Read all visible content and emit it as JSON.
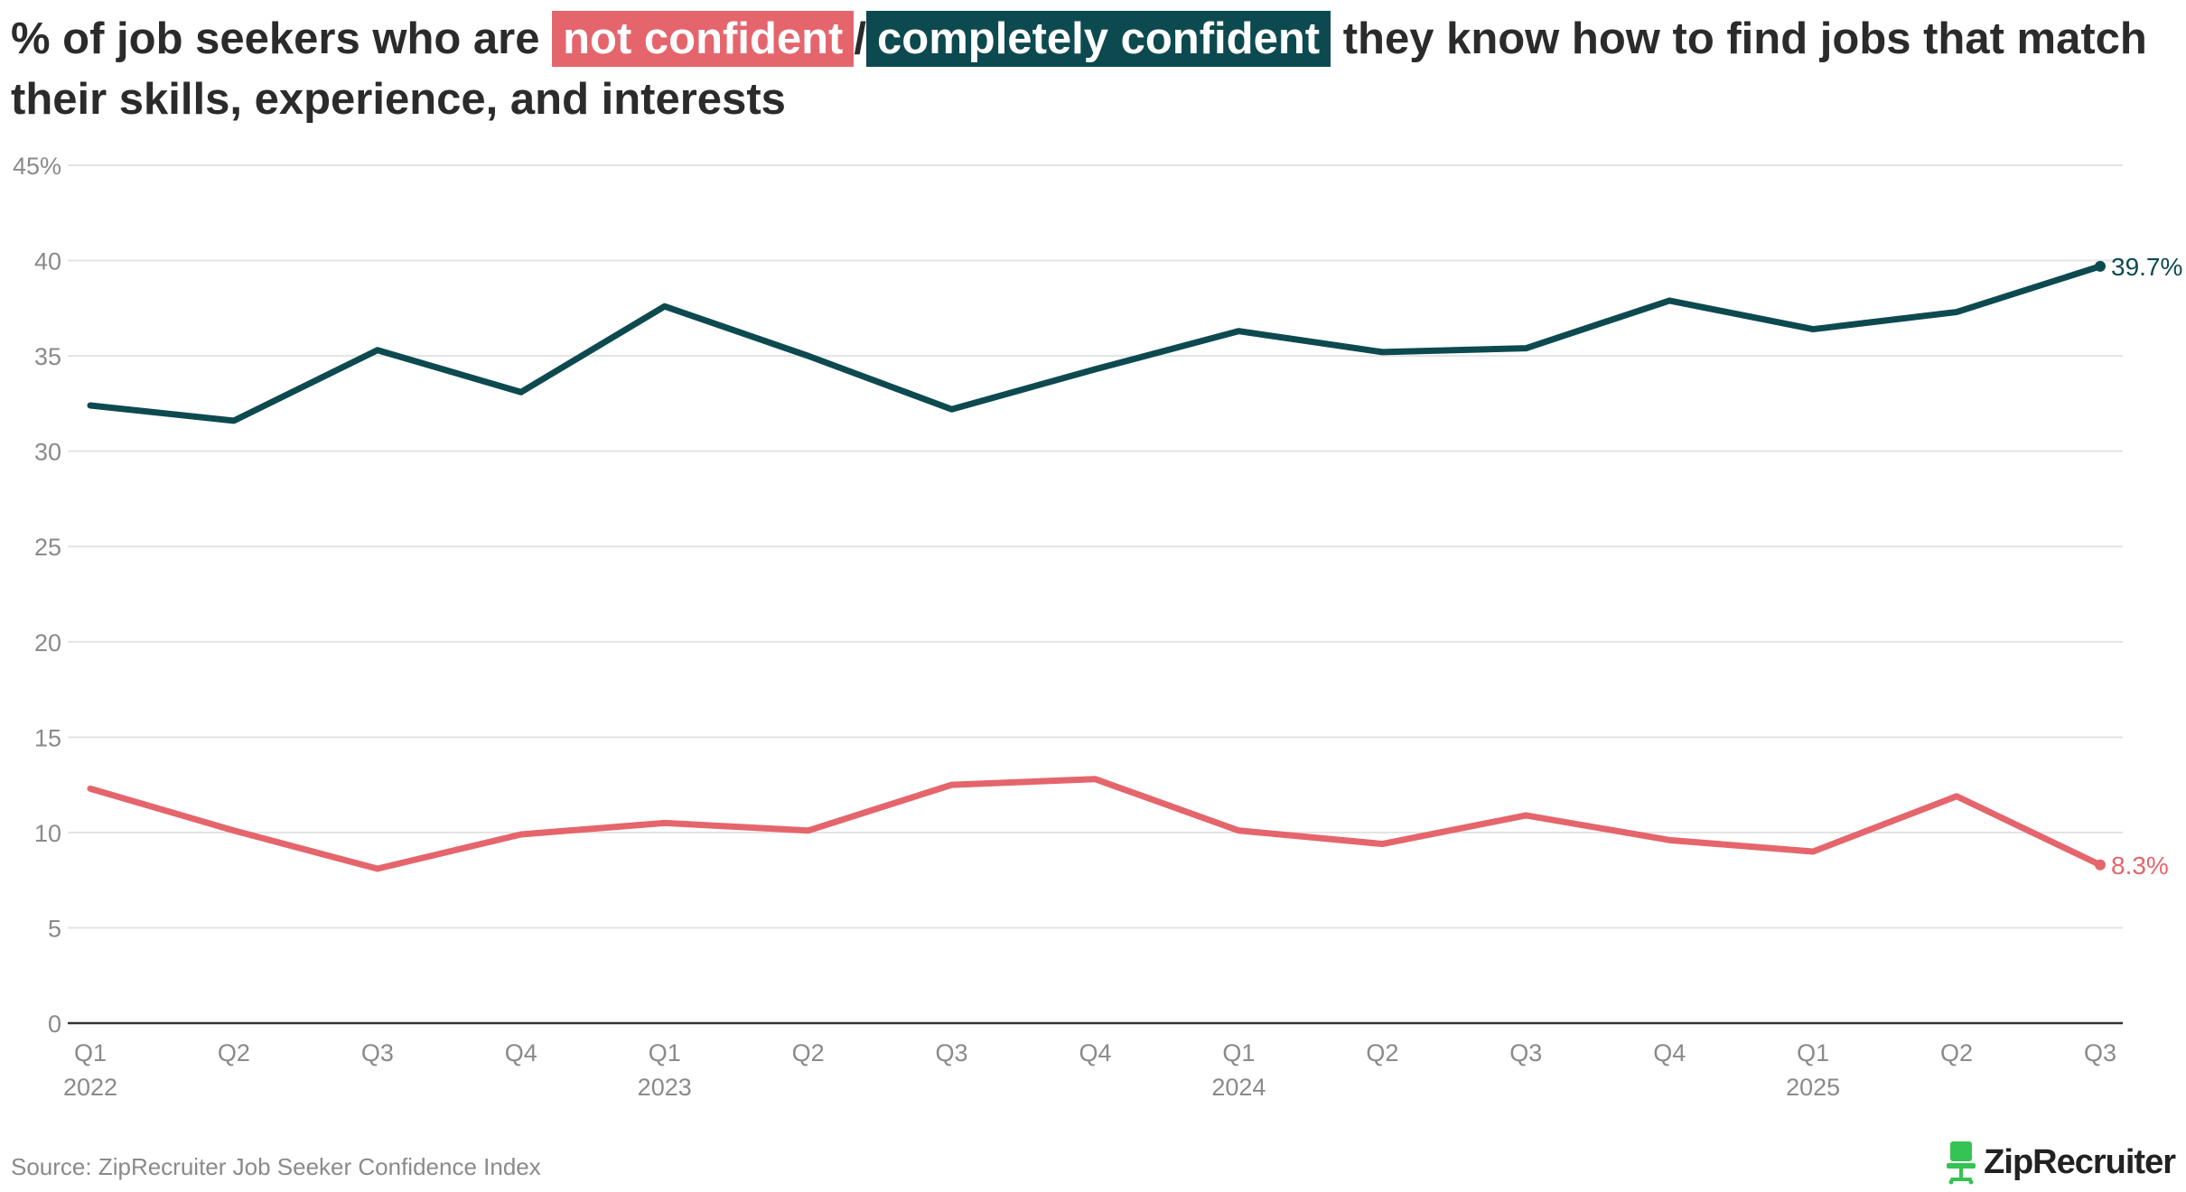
{
  "title": {
    "prefix": "% of job seekers who are ",
    "highlight_1": "not confident",
    "separator": "/",
    "highlight_2": "completely confident",
    "suffix": " they know how to find jobs that match their skills, experience, and interests"
  },
  "source": "Source: ZipRecruiter Job Seeker Confidence Index",
  "logo": {
    "text": "ZipRecruiter",
    "icon": "chair-icon"
  },
  "colors": {
    "not_confident": "#e5656c",
    "completely_confident": "#0d4a50",
    "grid": "#e3e3e3",
    "axis": "#333333",
    "logo_green": "#35c353"
  },
  "chart_data": {
    "type": "line",
    "x": [
      "Q1 2022",
      "Q2 2022",
      "Q3 2022",
      "Q4 2022",
      "Q1 2023",
      "Q2 2023",
      "Q3 2023",
      "Q4 2023",
      "Q1 2024",
      "Q2 2024",
      "Q3 2024",
      "Q4 2024",
      "Q1 2025",
      "Q2 2025",
      "Q3 2025"
    ],
    "x_tick_quarters": [
      "Q1",
      "Q2",
      "Q3",
      "Q4",
      "Q1",
      "Q2",
      "Q3",
      "Q4",
      "Q1",
      "Q2",
      "Q3",
      "Q4",
      "Q1",
      "Q2",
      "Q3"
    ],
    "x_tick_years": [
      "2022",
      "",
      "",
      "",
      "2023",
      "",
      "",
      "",
      "2024",
      "",
      "",
      "",
      "2025",
      "",
      ""
    ],
    "y_ticks": [
      "0",
      "5",
      "10",
      "15",
      "20",
      "25",
      "30",
      "35",
      "40",
      "45%"
    ],
    "ylim": [
      0,
      45
    ],
    "grid": true,
    "series": [
      {
        "key": "completely_confident",
        "color": "#0d4a50",
        "values": [
          32.4,
          31.6,
          35.3,
          33.1,
          37.6,
          35.0,
          32.2,
          34.3,
          36.3,
          35.2,
          35.4,
          37.9,
          36.4,
          37.3,
          39.7
        ],
        "end_label": "39.7%"
      },
      {
        "key": "not_confident",
        "color": "#e5656c",
        "values": [
          12.3,
          10.1,
          8.1,
          9.9,
          10.5,
          10.1,
          12.5,
          12.8,
          10.1,
          9.4,
          10.9,
          9.6,
          9.0,
          11.9,
          8.3
        ],
        "end_label": "8.3%"
      }
    ]
  }
}
